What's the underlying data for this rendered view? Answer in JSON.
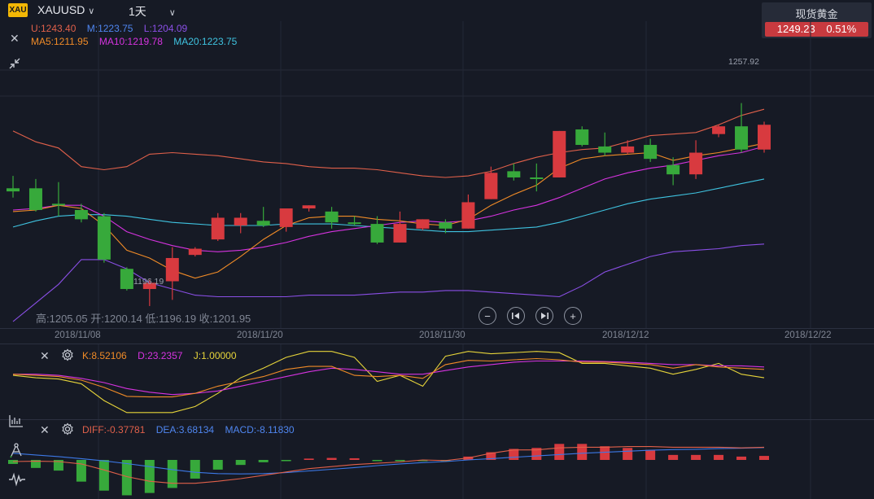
{
  "header": {
    "logo_text": "XAU",
    "symbol": "XAUUSD",
    "period": "1天",
    "symbol_dropdown_icon": "chevron-down-icon",
    "period_dropdown_icon": "chevron-down-icon"
  },
  "quote": {
    "name": "现货黄金",
    "price": "1249.23",
    "change_pct": "0.51%",
    "color": "#c83a3f"
  },
  "boll_legend": {
    "upper": "U:1243.40",
    "mid": "M:1223.75",
    "lower": "L:1204.09"
  },
  "ma_legend": {
    "ma5": "MA5:1211.95",
    "ma10": "MA10:1219.78",
    "ma20": "MA20:1223.75"
  },
  "ohlc_text": "高:1205.05 开:1200.14 低:1196.19 收:1201.95",
  "price_labels": {
    "high": "1257.92",
    "low": "1196.19"
  },
  "dates": [
    "2018/11/08",
    "2018/11/20",
    "2018/11/30",
    "2018/12/12",
    "2018/12/22"
  ],
  "kdj_legend": {
    "k": "K:8.52106",
    "d": "D:23.2357",
    "j": "J:1.00000"
  },
  "macd_legend": {
    "diff": "DIFF:-0.37781",
    "dea": "DEA:3.68134",
    "macd": "MACD:-8.11830"
  },
  "colors": {
    "up": "#d83a3f",
    "down": "#37a93b",
    "ma5": "#f08b27",
    "ma10": "#d633e0",
    "ma20": "#3fc3e0",
    "boll": "#e0604a",
    "boll_lower": "#8a4fe6",
    "kdj_j": "#e6d43a",
    "dea": "#3c78e6"
  },
  "chart_data": {
    "type": "candlestick",
    "candles": [
      {
        "o": 1215.0,
        "h": 1219.0,
        "l": 1212.0,
        "c": 1214.0
      },
      {
        "o": 1215.0,
        "h": 1218.0,
        "l": 1207.5,
        "c": 1208.0
      },
      {
        "o": 1210.0,
        "h": 1217.0,
        "l": 1206.0,
        "c": 1209.5
      },
      {
        "o": 1208.0,
        "h": 1210.0,
        "l": 1204.0,
        "c": 1205.0
      },
      {
        "o": 1206.0,
        "h": 1207.0,
        "l": 1191.0,
        "c": 1192.0
      },
      {
        "o": 1189.0,
        "h": 1189.5,
        "l": 1182.0,
        "c": 1182.5
      },
      {
        "o": 1182.5,
        "h": 1185.5,
        "l": 1177.0,
        "c": 1184.5
      },
      {
        "o": 1185.0,
        "h": 1196.0,
        "l": 1179.0,
        "c": 1192.5
      },
      {
        "o": 1193.5,
        "h": 1196.0,
        "l": 1193.0,
        "c": 1195.5
      },
      {
        "o": 1198.5,
        "h": 1207.0,
        "l": 1198.0,
        "c": 1205.5
      },
      {
        "o": 1203.0,
        "h": 1207.0,
        "l": 1200.5,
        "c": 1205.5
      },
      {
        "o": 1204.5,
        "h": 1209.0,
        "l": 1202.5,
        "c": 1203.0
      },
      {
        "o": 1202.5,
        "h": 1208.0,
        "l": 1201.0,
        "c": 1208.5
      },
      {
        "o": 1208.5,
        "h": 1209.5,
        "l": 1207.5,
        "c": 1209.5
      },
      {
        "o": 1207.5,
        "h": 1209.0,
        "l": 1202.0,
        "c": 1204.0
      },
      {
        "o": 1204.0,
        "h": 1206.0,
        "l": 1203.0,
        "c": 1203.5
      },
      {
        "o": 1203.5,
        "h": 1206.0,
        "l": 1197.0,
        "c": 1197.5
      },
      {
        "o": 1197.5,
        "h": 1207.5,
        "l": 1197.5,
        "c": 1203.5
      },
      {
        "o": 1202.0,
        "h": 1205.0,
        "l": 1201.5,
        "c": 1205.0
      },
      {
        "o": 1204.0,
        "h": 1205.0,
        "l": 1200.5,
        "c": 1202.0
      },
      {
        "o": 1202.0,
        "h": 1213.0,
        "l": 1202.0,
        "c": 1210.5
      },
      {
        "o": 1211.5,
        "h": 1222.0,
        "l": 1211.5,
        "c": 1220.0
      },
      {
        "o": 1220.5,
        "h": 1223.0,
        "l": 1217.5,
        "c": 1218.5
      },
      {
        "o": 1218.5,
        "h": 1223.0,
        "l": 1214.0,
        "c": 1218.0
      },
      {
        "o": 1218.5,
        "h": 1233.5,
        "l": 1218.5,
        "c": 1233.5
      },
      {
        "o": 1234.0,
        "h": 1235.0,
        "l": 1228.5,
        "c": 1229.0
      },
      {
        "o": 1228.5,
        "h": 1233.0,
        "l": 1225.5,
        "c": 1226.5
      },
      {
        "o": 1226.5,
        "h": 1230.5,
        "l": 1226.0,
        "c": 1228.5
      },
      {
        "o": 1229.0,
        "h": 1231.0,
        "l": 1223.5,
        "c": 1224.5
      },
      {
        "o": 1222.5,
        "h": 1225.0,
        "l": 1216.0,
        "c": 1219.5
      },
      {
        "o": 1219.5,
        "h": 1230.5,
        "l": 1218.0,
        "c": 1226.5
      },
      {
        "o": 1232.5,
        "h": 1235.5,
        "l": 1231.5,
        "c": 1235.0
      },
      {
        "o": 1235.0,
        "h": 1242.5,
        "l": 1226.5,
        "c": 1227.5
      },
      {
        "o": 1227.5,
        "h": 1236.5,
        "l": 1226.5,
        "c": 1235.5
      }
    ],
    "ma5": [
      1207.5,
      1208.0,
      1209.5,
      1208.5,
      1203.0,
      1195.0,
      1192.5,
      1188.5,
      1186.0,
      1188.0,
      1193.0,
      1198.5,
      1203.0,
      1205.5,
      1206.0,
      1206.0,
      1205.0,
      1204.5,
      1203.5,
      1203.0,
      1205.0,
      1209.5,
      1213.0,
      1216.0,
      1221.5,
      1224.5,
      1225.5,
      1226.0,
      1226.5,
      1224.0,
      1225.5,
      1226.5,
      1228.0,
      1229.5
    ],
    "ma10": [
      1208.0,
      1208.5,
      1209.5,
      1209.5,
      1206.0,
      1201.0,
      1198.5,
      1196.5,
      1195.0,
      1194.5,
      1195.0,
      1196.0,
      1197.5,
      1199.5,
      1201.0,
      1202.0,
      1203.0,
      1204.0,
      1204.5,
      1204.0,
      1204.5,
      1206.0,
      1208.0,
      1209.5,
      1212.0,
      1215.0,
      1218.0,
      1220.0,
      1221.5,
      1222.5,
      1224.0,
      1225.5,
      1226.5,
      1228.5
    ],
    "ma20": [
      1202.5,
      1204.5,
      1206.0,
      1206.5,
      1206.5,
      1206.0,
      1205.0,
      1204.0,
      1203.5,
      1203.0,
      1203.0,
      1203.0,
      1203.5,
      1203.5,
      1203.5,
      1203.0,
      1202.5,
      1202.0,
      1201.5,
      1201.0,
      1201.0,
      1201.5,
      1202.0,
      1202.5,
      1204.0,
      1206.0,
      1208.0,
      1210.0,
      1211.5,
      1212.5,
      1213.5,
      1215.0,
      1216.5,
      1218.0
    ],
    "boll_upper": [
      1233.5,
      1230.0,
      1228.0,
      1222.0,
      1221.0,
      1222.0,
      1226.0,
      1226.5,
      1226.0,
      1225.5,
      1224.5,
      1223.5,
      1223.0,
      1222.0,
      1221.5,
      1221.5,
      1221.0,
      1220.0,
      1219.0,
      1218.5,
      1219.0,
      1220.5,
      1223.0,
      1225.0,
      1226.5,
      1227.5,
      1228.0,
      1230.0,
      1232.0,
      1232.5,
      1233.0,
      1235.5,
      1238.5,
      1240.5
    ],
    "boll_lower": [
      1172.0,
      1178.0,
      1184.0,
      1192.0,
      1192.0,
      1189.0,
      1184.5,
      1182.5,
      1180.5,
      1180.0,
      1180.0,
      1180.0,
      1180.0,
      1180.5,
      1180.5,
      1180.5,
      1181.0,
      1181.5,
      1181.5,
      1182.0,
      1182.0,
      1181.5,
      1181.0,
      1180.5,
      1180.0,
      1183.5,
      1188.0,
      1190.5,
      1193.0,
      1194.5,
      1195.0,
      1195.5,
      1196.5,
      1197.0
    ],
    "kdj_k": [
      62,
      60,
      58,
      52,
      40,
      25,
      24,
      24,
      30,
      42,
      50,
      58,
      70,
      75,
      75,
      60,
      58,
      60,
      55,
      78,
      85,
      84,
      86,
      88,
      86,
      82,
      82,
      80,
      78,
      72,
      78,
      74,
      72,
      70
    ],
    "kdj_d": [
      62,
      62,
      60,
      55,
      48,
      38,
      32,
      28,
      30,
      34,
      42,
      50,
      58,
      66,
      72,
      70,
      66,
      62,
      62,
      68,
      74,
      78,
      82,
      84,
      84,
      84,
      83,
      82,
      80,
      78,
      78,
      76,
      76,
      74
    ],
    "kdj_j": [
      60,
      56,
      54,
      46,
      18,
      -2,
      -2,
      -2,
      8,
      30,
      56,
      72,
      90,
      100,
      100,
      90,
      50,
      60,
      42,
      92,
      100,
      96,
      98,
      100,
      98,
      80,
      80,
      76,
      72,
      62,
      70,
      80,
      62,
      56
    ],
    "macd_diff": [
      -0.5,
      -0.4,
      -0.5,
      -1.2,
      -3.0,
      -5.0,
      -6.4,
      -7.0,
      -7.0,
      -6.4,
      -5.6,
      -4.6,
      -3.6,
      -2.6,
      -2.0,
      -1.4,
      -1.0,
      -0.6,
      0.0,
      -0.2,
      0.6,
      2.0,
      3.0,
      3.0,
      3.6,
      3.8,
      3.8,
      4.0,
      4.0,
      3.8,
      3.8,
      3.8,
      3.6,
      3.8
    ],
    "macd_dea": [
      2.0,
      1.5,
      1.0,
      0.4,
      -0.3,
      -1.1,
      -2.0,
      -2.9,
      -3.7,
      -4.1,
      -4.2,
      -4.1,
      -3.8,
      -3.3,
      -2.8,
      -2.3,
      -1.7,
      -1.2,
      -0.8,
      -0.5,
      0.0,
      0.4,
      0.8,
      1.2,
      1.6,
      2.0,
      2.3,
      2.6,
      2.9,
      3.1,
      3.2,
      3.4,
      3.5,
      3.7
    ],
    "macd_hist": [
      -1.2,
      -2.4,
      -3.2,
      -6.5,
      -9.2,
      -10.6,
      -9.9,
      -8.4,
      -5.6,
      -2.9,
      -1.5,
      -0.7,
      -0.2,
      0.4,
      0.6,
      0.5,
      -0.3,
      -0.3,
      -0.3,
      -0.3,
      1.0,
      2.3,
      3.3,
      3.6,
      4.8,
      4.8,
      4.1,
      3.6,
      3.0,
      1.5,
      1.5,
      1.5,
      1.0,
      1.2
    ],
    "price_range": [
      1172,
      1260
    ],
    "title": "",
    "xlabel": "",
    "ylabel": ""
  }
}
